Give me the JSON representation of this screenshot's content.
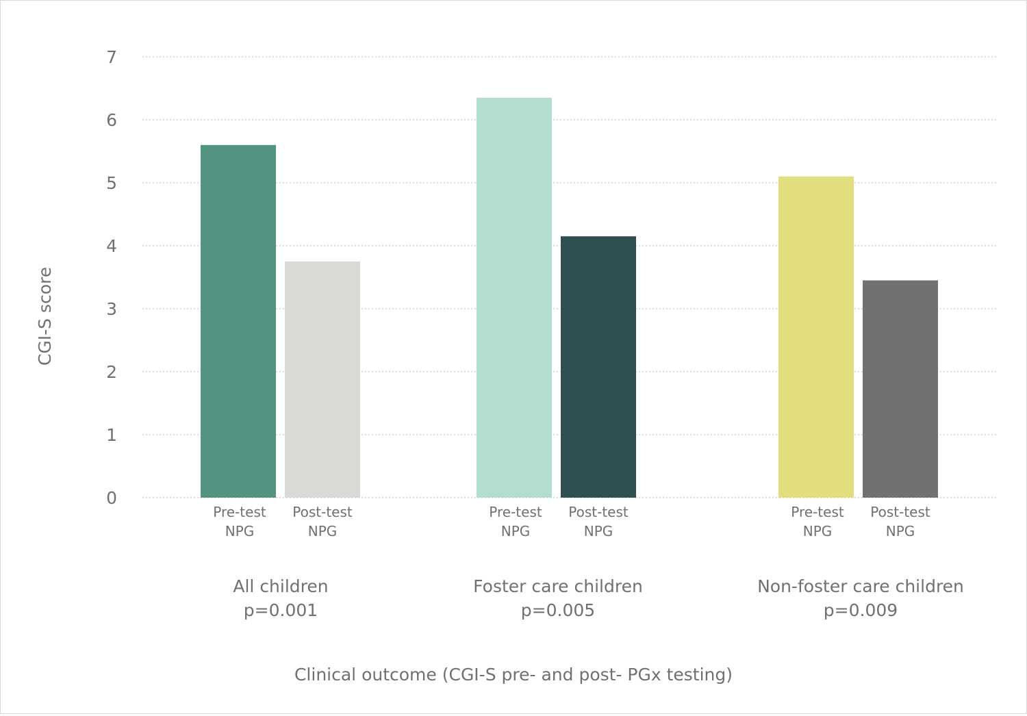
{
  "chart_data": {
    "type": "bar",
    "title": "",
    "xlabel": "Clinical outcome (CGI-S pre- and post- PGx testing)",
    "ylabel": "CGI-S score",
    "ylim": [
      0,
      7
    ],
    "yticks": [
      "0",
      "1",
      "2",
      "3",
      "4",
      "5",
      "6",
      "7"
    ],
    "grid": true,
    "legend": "none",
    "groups": [
      {
        "name": "All children",
        "pvalue": "p=0.001",
        "bars": [
          {
            "label": [
              "Pre-test",
              "NPG"
            ],
            "value": 5.6,
            "color": "#529381"
          },
          {
            "label": [
              "Post-test",
              "NPG"
            ],
            "value": 3.75,
            "color": "#d9dad5"
          }
        ]
      },
      {
        "name": "Foster care children",
        "pvalue": "p=0.005",
        "bars": [
          {
            "label": [
              "Pre-test",
              "NPG"
            ],
            "value": 6.35,
            "color": "#b3ddd0"
          },
          {
            "label": [
              "Post-test",
              "NPG"
            ],
            "value": 4.15,
            "color": "#2e5052"
          }
        ]
      },
      {
        "name": "Non-foster care children",
        "pvalue": "p=0.009",
        "bars": [
          {
            "label": [
              "Pre-test",
              "NPG"
            ],
            "value": 5.1,
            "color": "#e3de7d"
          },
          {
            "label": [
              "Post-test",
              "NPG"
            ],
            "value": 3.45,
            "color": "#71716f"
          }
        ]
      }
    ]
  }
}
